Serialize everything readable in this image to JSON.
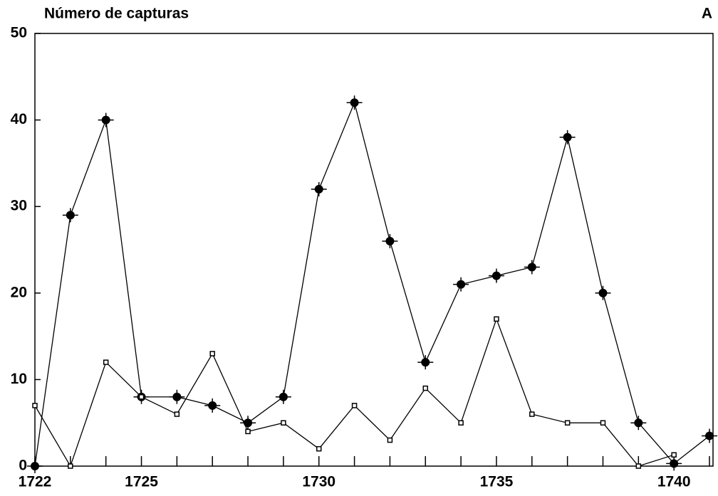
{
  "chart_data": {
    "type": "line",
    "title": "Número de capturas",
    "panel_label": "A",
    "x": [
      1722,
      1723,
      1724,
      1725,
      1726,
      1727,
      1728,
      1729,
      1730,
      1731,
      1732,
      1733,
      1734,
      1735,
      1736,
      1737,
      1738,
      1739,
      1740,
      1741
    ],
    "series": [
      {
        "marker": "circle",
        "color": "#000",
        "values": [
          0,
          29,
          40,
          8,
          8,
          7,
          5,
          8,
          32,
          42,
          26,
          12,
          21,
          22,
          23,
          38,
          20,
          5,
          0.3,
          3.5
        ]
      },
      {
        "marker": "square",
        "color": "#000",
        "values": [
          7,
          0,
          12,
          8,
          6,
          13,
          4,
          5,
          2,
          7,
          3,
          9,
          5,
          17,
          6,
          5,
          5,
          0,
          1.3,
          null
        ]
      }
    ],
    "xlim": [
      1722,
      1741.1
    ],
    "xticks": [
      1722,
      1725,
      1730,
      1735,
      1740
    ],
    "xminor_ticks": [
      1722,
      1723,
      1724,
      1725,
      1726,
      1727,
      1728,
      1729,
      1730,
      1731,
      1732,
      1733,
      1734,
      1735,
      1736,
      1737,
      1738,
      1739,
      1740,
      1741
    ],
    "ylim": [
      0,
      50
    ],
    "yticks": [
      0,
      10,
      20,
      30,
      40,
      50
    ],
    "grid": false
  }
}
